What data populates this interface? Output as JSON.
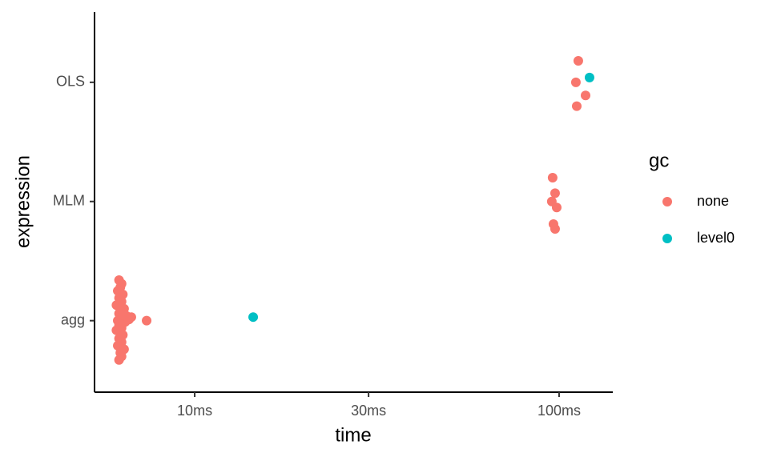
{
  "chart_data": {
    "type": "scatter",
    "x_label": "time",
    "y_label": "expression",
    "xscale": "log",
    "xlim": [
      5.31,
      140.4
    ],
    "xticks": [
      {
        "value": 10,
        "label": "10ms"
      },
      {
        "value": 30,
        "label": "30ms"
      },
      {
        "value": 100,
        "label": "100ms"
      }
    ],
    "ylim": [
      0.4,
      3.59
    ],
    "yticks": [
      {
        "value": 1,
        "label": "agg"
      },
      {
        "value": 2,
        "label": "MLM"
      },
      {
        "value": 3,
        "label": "OLS"
      }
    ],
    "grid": false,
    "legend_title": "gc",
    "legend_position": "right",
    "series": [
      {
        "name": "none",
        "color": "#F8766D",
        "x": [
          6.2,
          6.3,
          6.25,
          6.15,
          6.35,
          6.2,
          6.3,
          6.1,
          6.4,
          6.25,
          6.2,
          6.5,
          6.3,
          6.15,
          6.6,
          6.35,
          6.2,
          6.3,
          6.45,
          6.1,
          6.25,
          6.35,
          6.2,
          6.3,
          6.15,
          6.4,
          6.25,
          6.3,
          6.2,
          7.38,
          6.7,
          6.35,
          6.25,
          6.2,
          6.3,
          96.0,
          97.5,
          95.5,
          98.5,
          96.5,
          97.5,
          112.9,
          111.2,
          118.2,
          111.8
        ],
        "y": [
          1.34,
          1.31,
          1.28,
          1.25,
          1.22,
          1.19,
          1.16,
          1.13,
          1.1,
          1.08,
          1.06,
          1.04,
          1.02,
          1.0,
          1.01,
          0.98,
          0.96,
          0.94,
          0.99,
          0.92,
          0.9,
          0.88,
          0.85,
          0.82,
          0.79,
          0.76,
          0.73,
          0.7,
          0.67,
          1.0,
          1.03,
          1.05,
          0.97,
          1.12,
          0.87,
          2.2,
          2.07,
          2.0,
          1.95,
          1.81,
          1.77,
          3.18,
          3.0,
          2.89,
          2.8
        ]
      },
      {
        "name": "level0",
        "color": "#00BFC4",
        "x": [
          14.47,
          121.2
        ],
        "y": [
          1.03,
          3.04
        ]
      }
    ]
  }
}
